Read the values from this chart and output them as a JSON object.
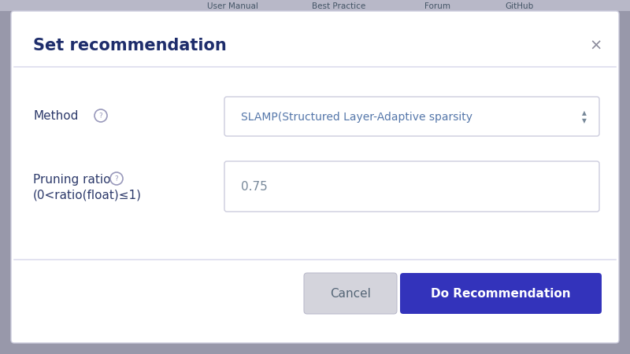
{
  "bg_color": "#9898aa",
  "dialog_bg": "#ffffff",
  "title_text": "Set recommendation",
  "title_color": "#1e2d6b",
  "title_fontsize": 15,
  "close_x_text": "×",
  "close_color": "#888899",
  "method_label": "Method",
  "method_help_circle": "?",
  "method_value": "SLAMP(Structured Layer-Adaptive sparsity",
  "method_label_color": "#2d3a6b",
  "dropdown_border": "#ccccdd",
  "dropdown_bg": "#ffffff",
  "dropdown_text_color": "#5577aa",
  "pruning_label1": "Pruning ratio",
  "pruning_label2": "(0<ratio(float)≤1)",
  "pruning_value": "0.75",
  "pruning_label_color": "#2d3a6b",
  "pruning_value_color": "#778899",
  "input_border": "#ccccdd",
  "input_bg": "#ffffff",
  "cancel_text": "Cancel",
  "cancel_bg": "#d4d4dc",
  "cancel_text_color": "#556677",
  "recommend_text": "Do Recommendation",
  "recommend_bg": "#3333bb",
  "recommend_text_color": "#ffffff",
  "nav_texts": [
    "User Manual",
    "Best Practice",
    "Forum",
    "GitHub"
  ],
  "nav_color": "#445566",
  "nav_bg": "#b8b8c8",
  "divider_color": "#ddddee",
  "label_fontsize": 11,
  "value_fontsize": 10
}
